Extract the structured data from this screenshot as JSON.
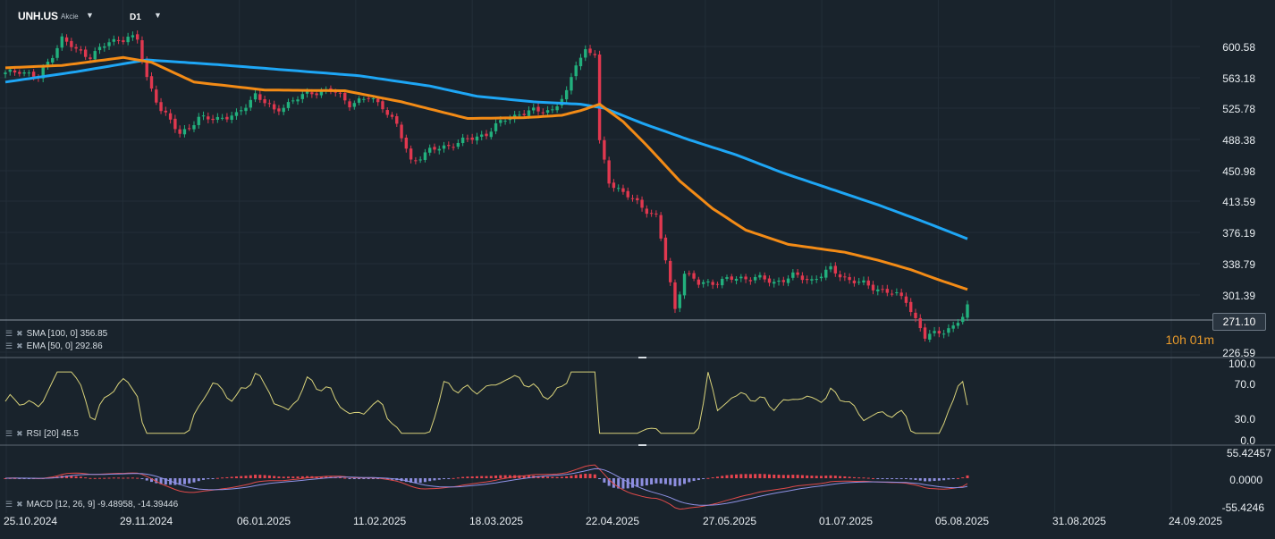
{
  "header": {
    "symbol": "UNH.US",
    "instrument_type": "Akcie",
    "timeframe": "D1",
    "dropdown_icon": "caret-down-icon"
  },
  "price_axis": [
    "600.58",
    "563.18",
    "525.78",
    "488.38",
    "450.98",
    "413.59",
    "376.19",
    "338.79",
    "301.39",
    "226.59"
  ],
  "current_price": "271.10",
  "countdown": "10h 01m",
  "indicators": {
    "sma": "SMA [100, 0]  356.85",
    "ema": "EMA [50, 0]  292.86",
    "rsi": "RSI [20]  45.5",
    "macd": "MACD [12, 26, 9]  -9.48958,  -14.39446"
  },
  "rsi_axis": [
    "100.0",
    "70.0",
    "30.0",
    "0.0"
  ],
  "macd_axis": [
    "55.42457",
    "0.0000",
    "-55.4246"
  ],
  "time_axis": [
    "25.10.2024",
    "29.11.2024",
    "06.01.2025",
    "11.02.2025",
    "18.03.2025",
    "22.04.2025",
    "27.05.2025",
    "01.07.2025",
    "05.08.2025",
    "31.08.2025",
    "24.09.2025"
  ],
  "colors": {
    "background": "#19232c",
    "up_candle": "#22b07d",
    "down_candle": "#e0384f",
    "sma": "#1ea6f5",
    "ema": "#f38b16",
    "rsi": "#d8d27a",
    "macd_hist_pos": "#e8444f",
    "macd_hist_neg": "#8e8fe0"
  },
  "chart_data": {
    "type": "candlestick",
    "anchors": [
      [
        0,
        565
      ],
      [
        3,
        570
      ],
      [
        7,
        560
      ],
      [
        12,
        610
      ],
      [
        15,
        595
      ],
      [
        18,
        588
      ],
      [
        22,
        605
      ],
      [
        26,
        612
      ],
      [
        28,
        608
      ],
      [
        30,
        560
      ],
      [
        33,
        520
      ],
      [
        37,
        490
      ],
      [
        41,
        508
      ],
      [
        45,
        510
      ],
      [
        49,
        512
      ],
      [
        53,
        540
      ],
      [
        57,
        518
      ],
      [
        61,
        532
      ],
      [
        65,
        542
      ],
      [
        69,
        545
      ],
      [
        73,
        528
      ],
      [
        77,
        535
      ],
      [
        80,
        525
      ],
      [
        83,
        500
      ],
      [
        86,
        455
      ],
      [
        90,
        468
      ],
      [
        94,
        475
      ],
      [
        98,
        482
      ],
      [
        102,
        490
      ],
      [
        106,
        508
      ],
      [
        109,
        515
      ],
      [
        112,
        518
      ],
      [
        116,
        520
      ],
      [
        119,
        540
      ],
      [
        121,
        580
      ],
      [
        123,
        595
      ],
      [
        125,
        590
      ],
      [
        126,
        478
      ],
      [
        128,
        430
      ],
      [
        131,
        415
      ],
      [
        134,
        402
      ],
      [
        138,
        385
      ],
      [
        140,
        330
      ],
      [
        142,
        268
      ],
      [
        144,
        315
      ],
      [
        147,
        300
      ],
      [
        151,
        303
      ],
      [
        155,
        307
      ],
      [
        159,
        308
      ],
      [
        163,
        302
      ],
      [
        167,
        310
      ],
      [
        171,
        305
      ],
      [
        175,
        318
      ],
      [
        179,
        305
      ],
      [
        184,
        296
      ],
      [
        188,
        288
      ],
      [
        191,
        280
      ],
      [
        193,
        255
      ],
      [
        195,
        232
      ],
      [
        198,
        240
      ],
      [
        201,
        245
      ],
      [
        203,
        258
      ],
      [
        204,
        271
      ]
    ],
    "ema_anchors": [
      [
        0,
        573
      ],
      [
        12,
        576
      ],
      [
        25,
        586
      ],
      [
        31,
        580
      ],
      [
        40,
        555
      ],
      [
        55,
        545
      ],
      [
        72,
        544
      ],
      [
        84,
        530
      ],
      [
        92,
        518
      ],
      [
        98,
        509
      ],
      [
        110,
        510
      ],
      [
        118,
        513
      ],
      [
        122,
        519
      ],
      [
        126,
        527
      ],
      [
        131,
        505
      ],
      [
        136,
        475
      ],
      [
        143,
        430
      ],
      [
        150,
        395
      ],
      [
        157,
        368
      ],
      [
        166,
        350
      ],
      [
        178,
        340
      ],
      [
        185,
        330
      ],
      [
        192,
        318
      ],
      [
        198,
        305
      ],
      [
        204,
        293
      ]
    ],
    "sma_anchors": [
      [
        0,
        555
      ],
      [
        15,
        568
      ],
      [
        30,
        583
      ],
      [
        45,
        577
      ],
      [
        60,
        570
      ],
      [
        75,
        563
      ],
      [
        90,
        550
      ],
      [
        100,
        537
      ],
      [
        112,
        530
      ],
      [
        122,
        527
      ],
      [
        127,
        522
      ],
      [
        135,
        503
      ],
      [
        145,
        482
      ],
      [
        155,
        463
      ],
      [
        165,
        440
      ],
      [
        175,
        420
      ],
      [
        185,
        400
      ],
      [
        195,
        378
      ],
      [
        204,
        357
      ]
    ],
    "ema_last": 292.86,
    "sma_last": 356.85,
    "rsi_last": 45.5,
    "macd_last": -9.48958,
    "signal_last": -14.39446,
    "ylim": [
      207,
      618
    ],
    "rsi_ylim": [
      0,
      100
    ],
    "macd_ylim": [
      -55.4246,
      55.42457
    ]
  }
}
